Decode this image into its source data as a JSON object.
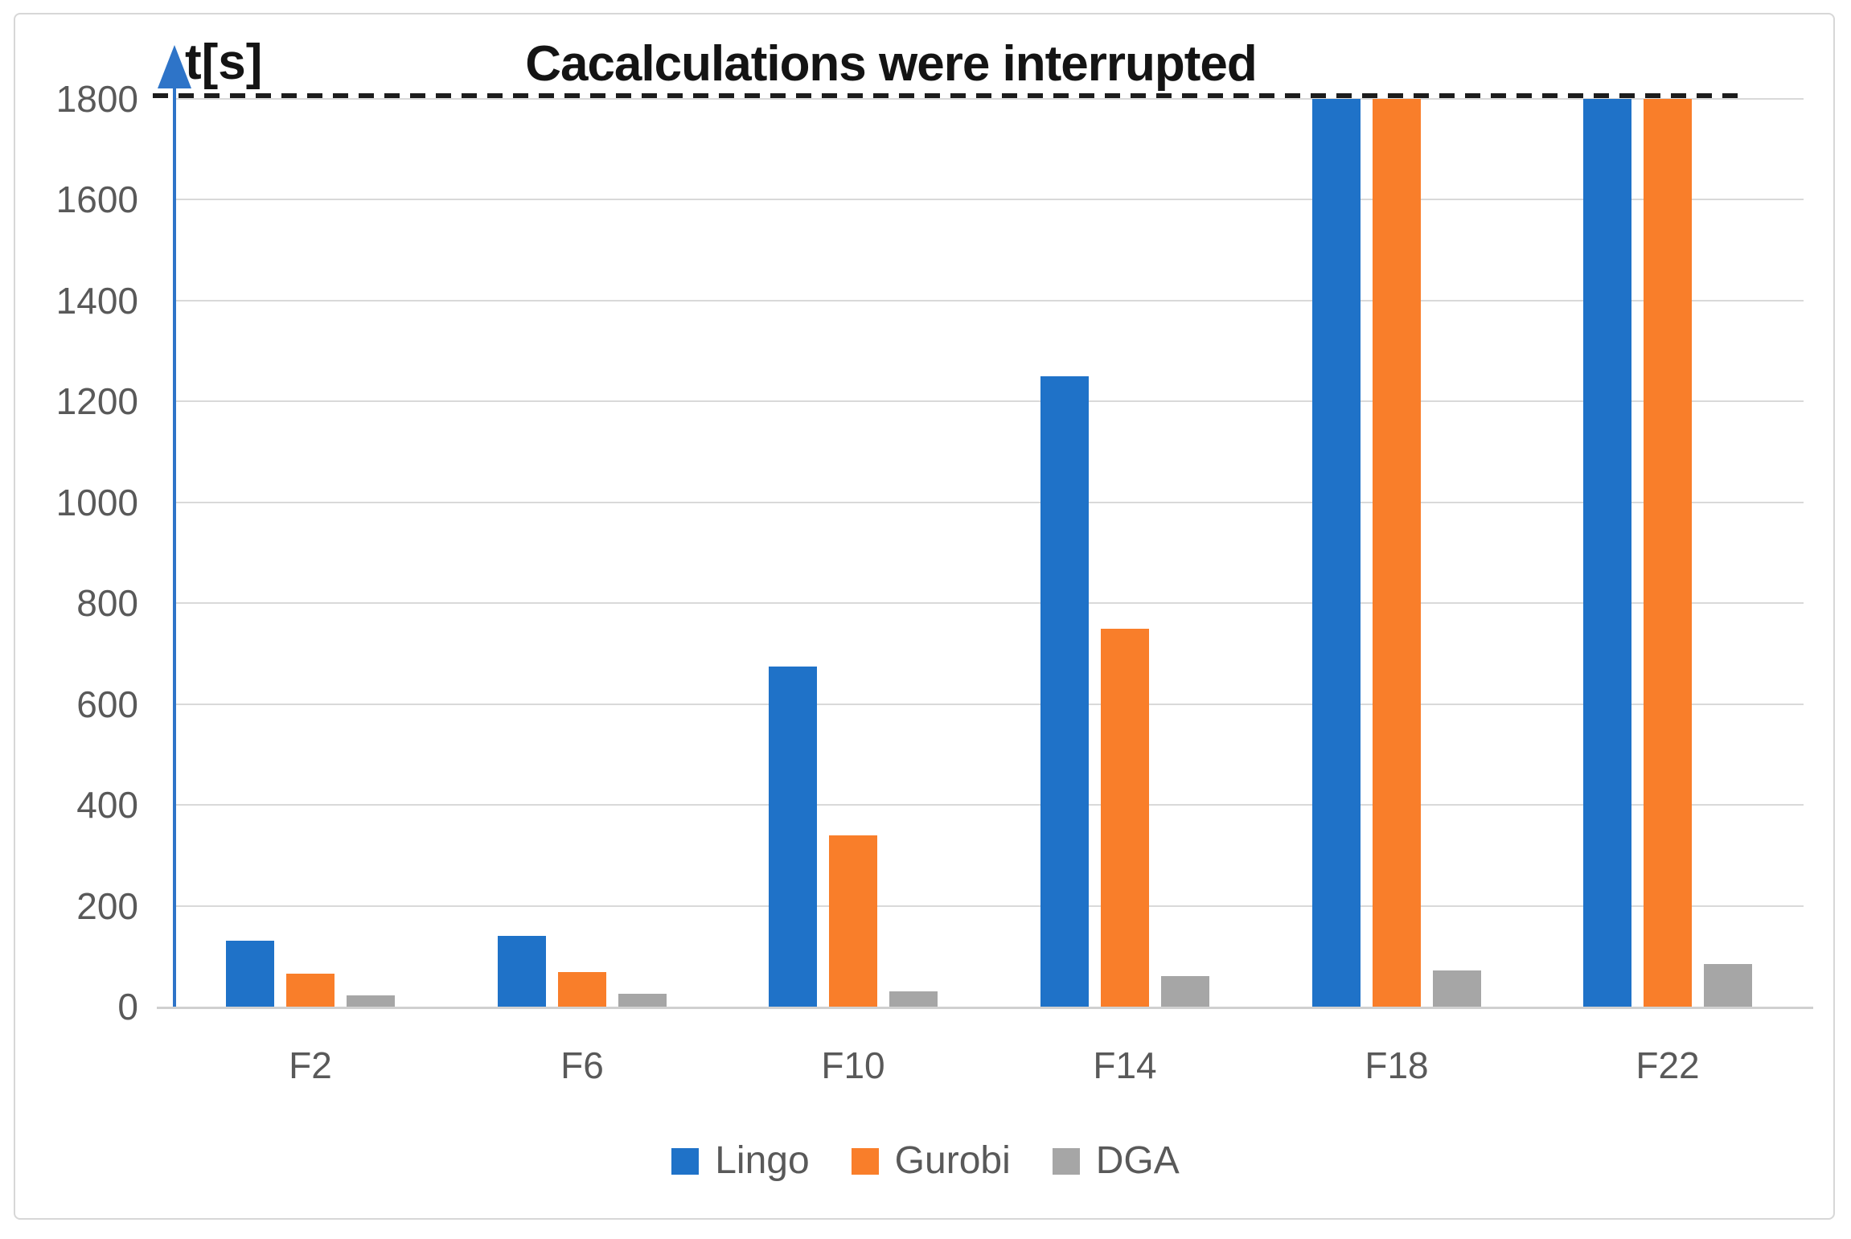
{
  "figure": {
    "title": "Cacalculations were interrupted",
    "y_axis_unit_label": "t[s]"
  },
  "chart_data": {
    "type": "bar",
    "title": "Cacalculations were interrupted",
    "ylabel": "t[s]",
    "categories": [
      "F2",
      "F6",
      "F10",
      "F14",
      "F18",
      "F22"
    ],
    "series": [
      {
        "name": "Lingo",
        "color": "#1f72c8",
        "values": [
          130,
          140,
          675,
          1250,
          1800,
          1800
        ]
      },
      {
        "name": "Gurobi",
        "color": "#f97e2a",
        "values": [
          65,
          68,
          340,
          750,
          1800,
          1800
        ]
      },
      {
        "name": "DGA",
        "color": "#a6a6a6",
        "values": [
          22,
          25,
          30,
          60,
          72,
          85
        ]
      }
    ],
    "ylim": [
      0,
      1800
    ],
    "yticks": [
      0,
      200,
      400,
      600,
      800,
      1000,
      1200,
      1400,
      1600,
      1800
    ],
    "timeout_line_value": 1800,
    "annotation": "Cacalculations were interrupted",
    "grid": true,
    "legend_position": "bottom"
  },
  "colors": {
    "axis_line": "#2e74c8",
    "gridline": "#d9d9d9",
    "tick_label": "#595959",
    "timeout_dash": "#1c1c1c",
    "title_text": "#141414"
  }
}
